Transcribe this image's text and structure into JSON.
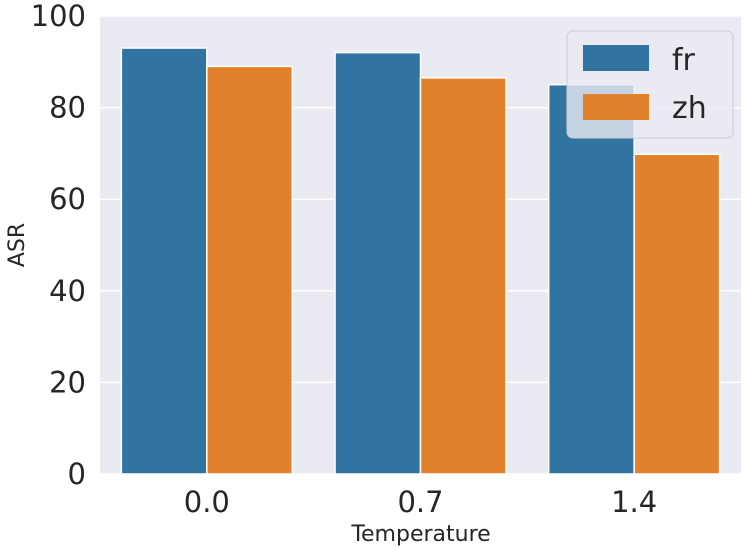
{
  "chart_data": {
    "type": "bar",
    "title": "",
    "xlabel": "Temperature",
    "ylabel": "ASR",
    "categories": [
      "0.0",
      "0.7",
      "1.4"
    ],
    "series": [
      {
        "name": "fr",
        "values": [
          93,
          92,
          85
        ],
        "color": "#3274a1"
      },
      {
        "name": "zh",
        "values": [
          89,
          86.5,
          69.8
        ],
        "color": "#e1812c"
      }
    ],
    "ylim": [
      0,
      100
    ],
    "yticks": [
      0,
      20,
      40,
      60,
      80,
      100
    ],
    "grid": true,
    "legend": "top-right",
    "background": "#eaeaf2"
  }
}
